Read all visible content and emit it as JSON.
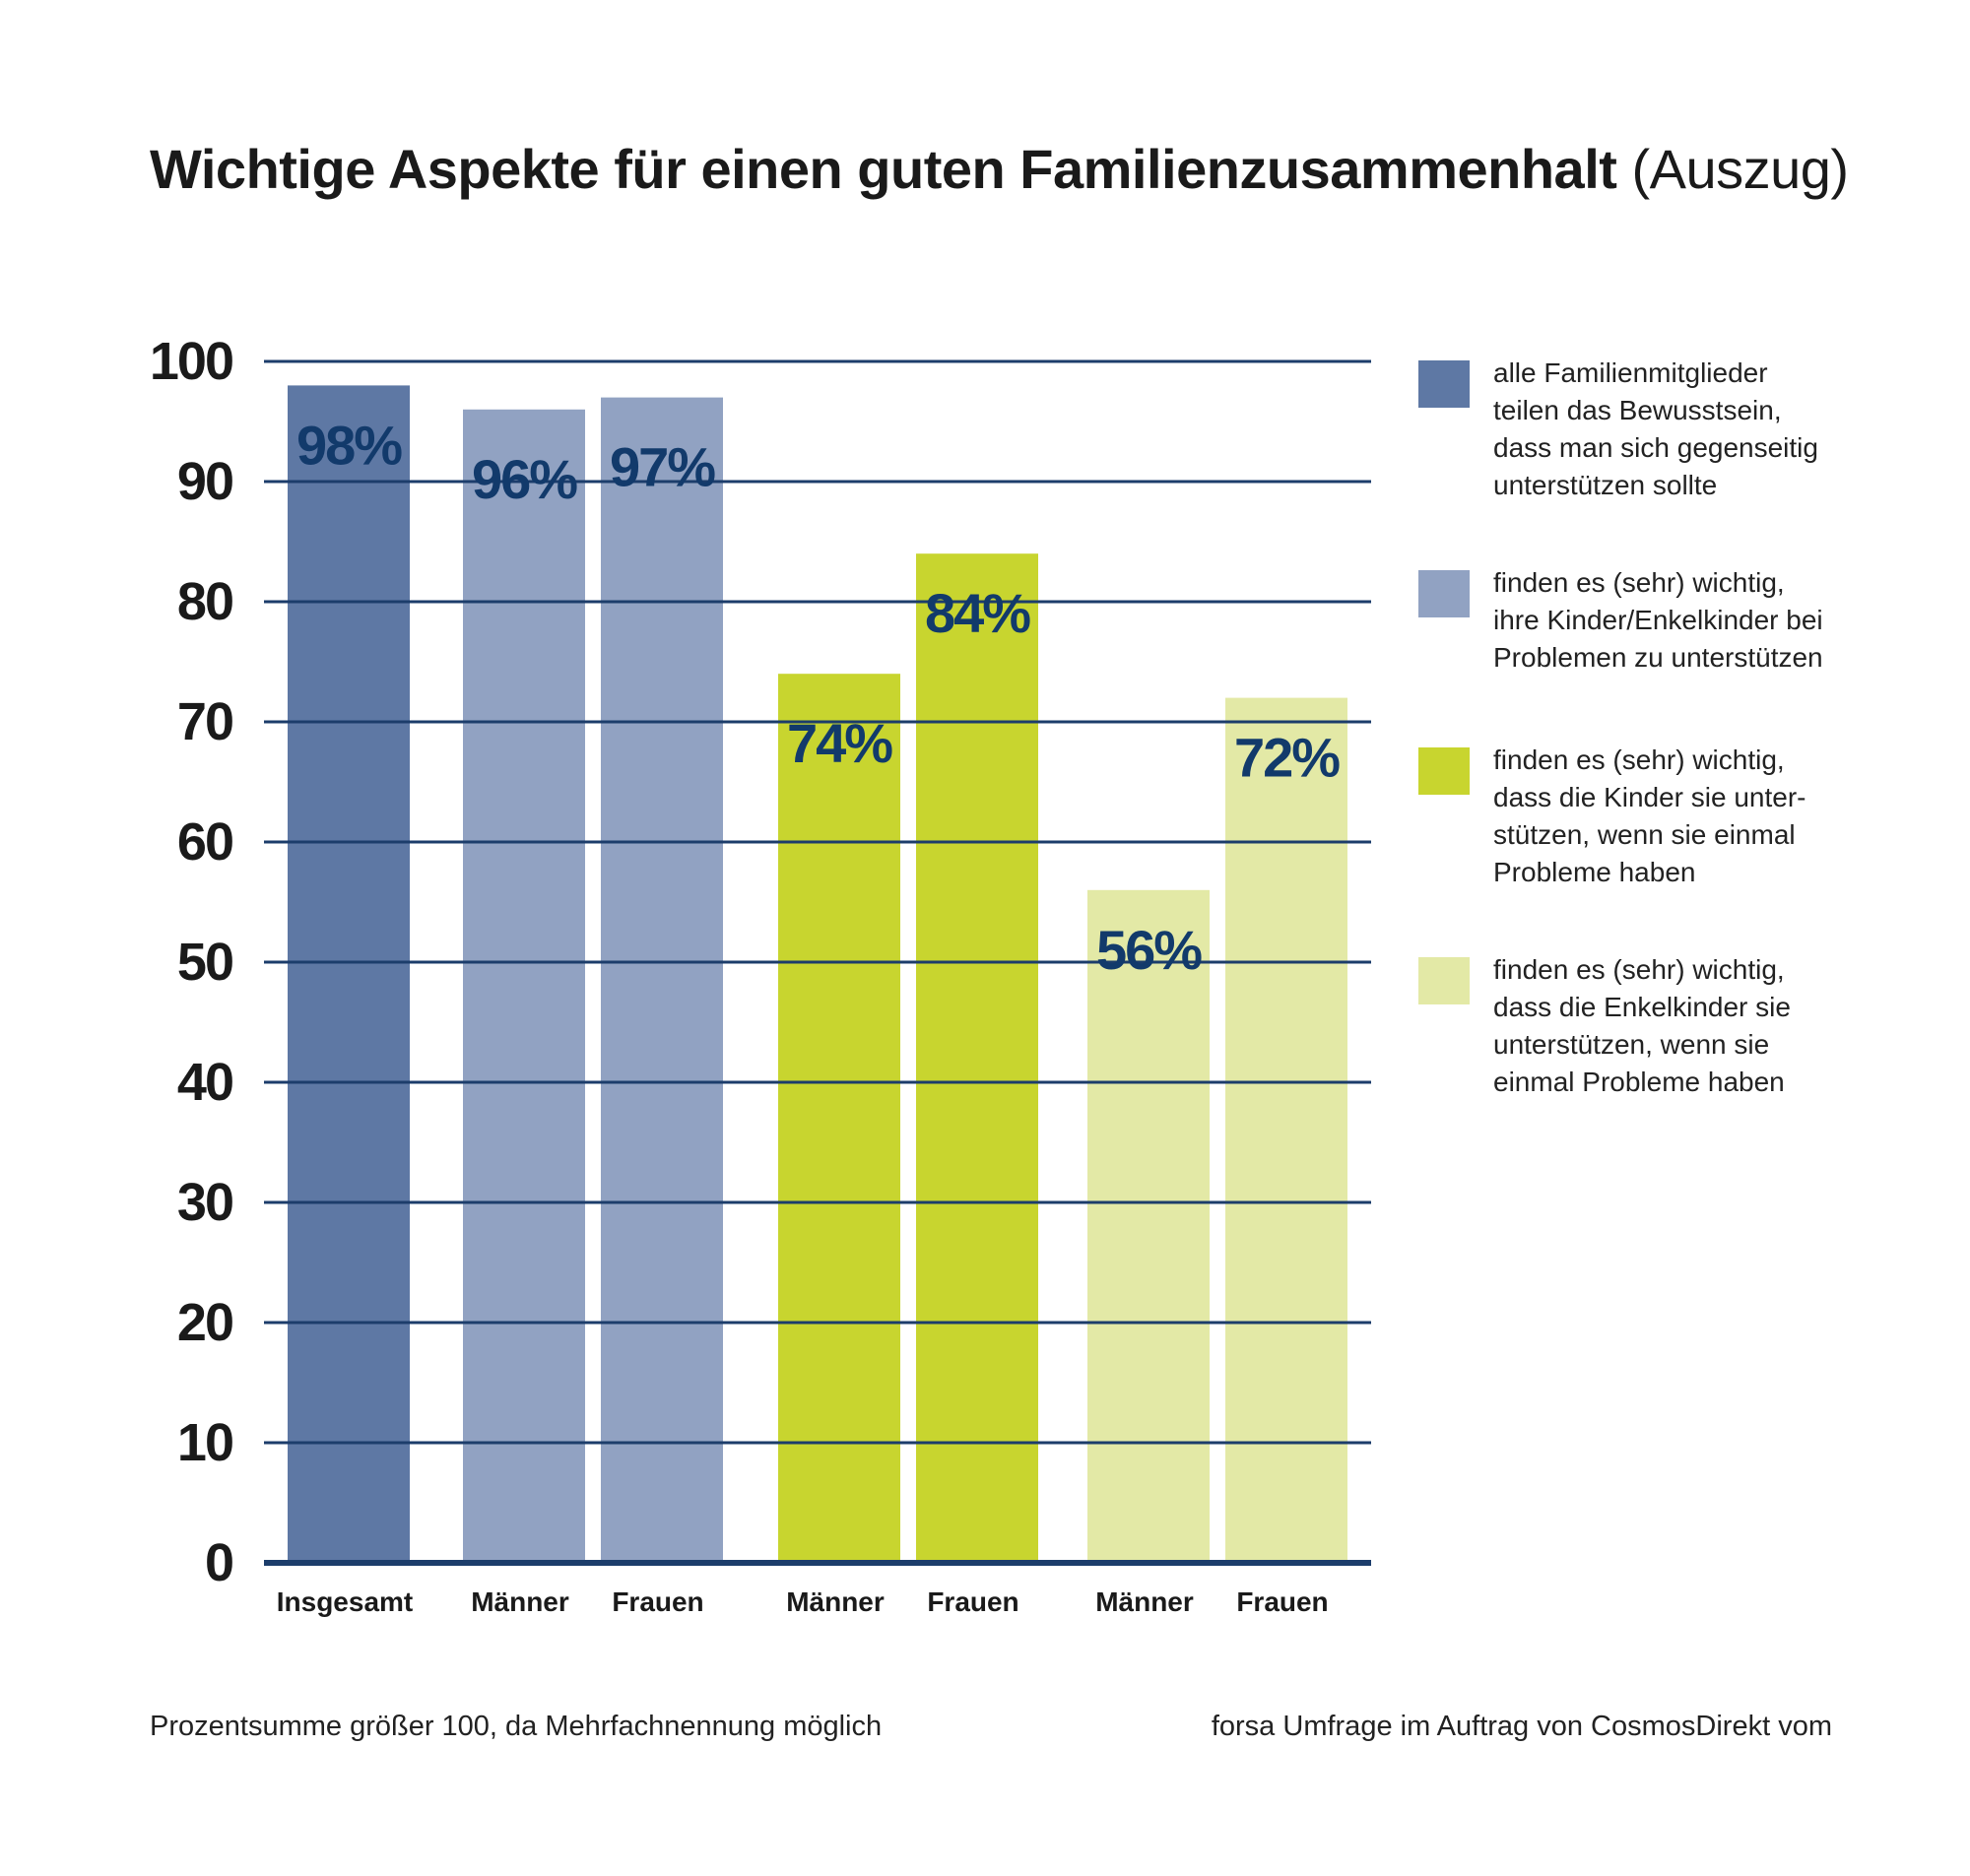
{
  "title": {
    "main": "Wichtige Aspekte für einen guten Familienzusammenhalt",
    "sub": "(Auszug)"
  },
  "chart_data": {
    "type": "bar",
    "ylim": [
      0,
      100
    ],
    "yticks": [
      0,
      10,
      20,
      30,
      40,
      50,
      60,
      70,
      80,
      90,
      100
    ],
    "grid": true,
    "legend_position": "right",
    "value_suffix": "%",
    "bars": [
      {
        "category": "Insgesamt",
        "value": 98,
        "series": 0
      },
      {
        "category": "Männer",
        "value": 96,
        "series": 1
      },
      {
        "category": "Frauen",
        "value": 97,
        "series": 1
      },
      {
        "category": "Männer",
        "value": 74,
        "series": 2
      },
      {
        "category": "Frauen",
        "value": 84,
        "series": 2
      },
      {
        "category": "Männer",
        "value": 56,
        "series": 3
      },
      {
        "category": "Frauen",
        "value": 72,
        "series": 3
      }
    ],
    "series": [
      {
        "name": "alle Familienmitglieder\nteilen das Bewusstsein,\ndass man sich gegenseitig\nunterstützen sollte",
        "color": "#5e78a4"
      },
      {
        "name": "finden es (sehr) wichtig,\nihre Kinder/Enkelkinder bei\nProblemen zu unterstützen",
        "color": "#91a2c2"
      },
      {
        "name": "finden es (sehr) wichtig,\ndass die Kinder sie unter-\nstützen, wenn sie einmal\nProbleme haben",
        "color": "#c8d52f"
      },
      {
        "name": "finden es (sehr) wichtig,\ndass die Enkelkinder sie\nunterstützen, wenn sie\neinmal Probleme haben",
        "color": "#e3e9a6"
      }
    ],
    "colors": {
      "grid": "#1c3d6b",
      "value_label": "#123a6b",
      "axis_text": "#1a1a1a"
    }
  },
  "footnote": "Prozentsumme größer 100, da Mehrfachnennung möglich",
  "source": "forsa Umfrage im Auftrag von CosmosDirekt vom"
}
